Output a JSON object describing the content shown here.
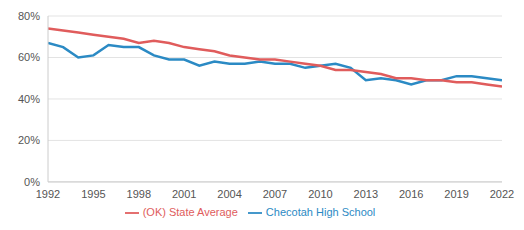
{
  "chart_data": {
    "type": "line",
    "x": [
      1992,
      1993,
      1994,
      1995,
      1996,
      1997,
      1998,
      1999,
      2000,
      2001,
      2002,
      2003,
      2004,
      2005,
      2006,
      2007,
      2008,
      2009,
      2010,
      2011,
      2012,
      2013,
      2014,
      2015,
      2016,
      2017,
      2018,
      2019,
      2020,
      2021,
      2022
    ],
    "series": [
      {
        "name": "Checotah High School",
        "color": "#2b8ac4",
        "values": [
          67,
          65,
          60,
          61,
          66,
          65,
          65,
          61,
          59,
          59,
          56,
          58,
          57,
          57,
          58,
          57,
          57,
          55,
          56,
          57,
          55,
          49,
          50,
          49,
          47,
          49,
          49,
          51,
          51,
          50,
          49
        ]
      },
      {
        "name": "(OK) State Average",
        "color": "#e05c5c",
        "values": [
          74,
          73,
          72,
          71,
          70,
          69,
          67,
          68,
          67,
          65,
          64,
          63,
          61,
          60,
          59,
          59,
          58,
          57,
          56,
          54,
          54,
          53,
          52,
          50,
          50,
          49,
          49,
          48,
          48,
          47,
          46
        ]
      }
    ],
    "xlim": [
      1992,
      2022
    ],
    "xticks": [
      1992,
      1995,
      1998,
      2001,
      2004,
      2007,
      2010,
      2013,
      2016,
      2019,
      2022
    ],
    "ylim": [
      0,
      80
    ],
    "yticks": [
      {
        "value": 0,
        "label": "0%"
      },
      {
        "value": 20,
        "label": "20%"
      },
      {
        "value": 40,
        "label": "40%"
      },
      {
        "value": 60,
        "label": "60%"
      },
      {
        "value": 80,
        "label": "80%"
      }
    ],
    "grid": true,
    "legend": "bottom"
  }
}
